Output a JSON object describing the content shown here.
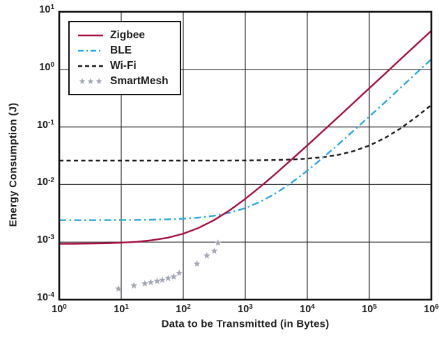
{
  "chart_data": {
    "type": "line",
    "title": "",
    "xlabel": "Data to be Transmitted (in Bytes)",
    "ylabel": "Energy Consumption (J)",
    "x_axis": {
      "label": "Data to be Transmitted (in Bytes)",
      "scale": "log",
      "min_exponent": 0,
      "max_exponent": 6,
      "tick_exponents": [
        0,
        1,
        2,
        3,
        4,
        5,
        6
      ],
      "tick_base": "10"
    },
    "y_axis": {
      "label": "Energy Consumption (J)",
      "scale": "log",
      "min_exponent": -4,
      "max_exponent": 1,
      "tick_exponents": [
        1,
        0,
        -1,
        -2,
        -3,
        -4
      ],
      "tick_base": "10"
    },
    "grid": true,
    "legend_position": "top-left",
    "series": [
      {
        "name": "Zigbee",
        "style": "solid",
        "color": "#a80e41",
        "x": [
          1,
          1.78,
          3.16,
          5.62,
          10,
          17.8,
          31.6,
          56.2,
          100,
          178,
          316,
          562,
          1000,
          1780,
          3160,
          5620,
          10000,
          17800,
          31600,
          56200,
          100000,
          178000,
          316000,
          562000,
          1000000
        ],
        "y": [
          0.000935,
          0.000938,
          0.000945,
          0.000956,
          0.000977,
          0.00101,
          0.00108,
          0.00119,
          0.0014,
          0.00177,
          0.00242,
          0.00357,
          0.00563,
          0.00929,
          0.0158,
          0.0274,
          0.0479,
          0.0846,
          0.149,
          0.265,
          0.471,
          0.838,
          1.49,
          2.64,
          4.7
        ]
      },
      {
        "name": "BLE",
        "style": "dashdot",
        "color": "#2aa9e0",
        "x": [
          1,
          1.78,
          3.16,
          5.62,
          10,
          17.8,
          31.6,
          56.2,
          100,
          178,
          316,
          562,
          1000,
          1780,
          3160,
          5620,
          10000,
          17800,
          31600,
          56200,
          100000,
          178000,
          316000,
          562000,
          1000000
        ],
        "y": [
          0.0024,
          0.0024,
          0.0024,
          0.00241,
          0.00242,
          0.00243,
          0.00245,
          0.00248,
          0.00255,
          0.00267,
          0.00287,
          0.00324,
          0.0039,
          0.00507,
          0.00714,
          0.0108,
          0.0174,
          0.0291,
          0.0498,
          0.0867,
          0.152,
          0.267,
          0.476,
          0.845,
          1.5
        ]
      },
      {
        "name": "Wi-Fi",
        "style": "dashed",
        "color": "#1b1b1b",
        "x": [
          1,
          1.78,
          3.16,
          5.62,
          10,
          17.8,
          31.6,
          56.2,
          100,
          178,
          316,
          562,
          1000,
          1780,
          3160,
          5620,
          10000,
          17800,
          31600,
          56200,
          100000,
          178000,
          316000,
          562000,
          1000000
        ],
        "y": [
          0.026,
          0.026,
          0.026,
          0.026,
          0.026,
          0.026,
          0.026,
          0.026,
          0.026,
          0.026,
          0.0261,
          0.0261,
          0.0262,
          0.0264,
          0.0267,
          0.0272,
          0.0282,
          0.0298,
          0.0328,
          0.0381,
          0.0475,
          0.0643,
          0.0939,
          0.147,
          0.241
        ]
      },
      {
        "name": "SmartMesh",
        "style": "stars",
        "color": "#a3a7b5",
        "x": [
          9,
          16,
          24,
          30,
          38,
          46,
          57,
          70,
          86,
          166,
          240,
          316,
          363
        ],
        "y": [
          0.000155,
          0.000175,
          0.00019,
          0.0002,
          0.00021,
          0.00022,
          0.000235,
          0.00025,
          0.00029,
          0.00042,
          0.00058,
          0.0007,
          0.00097
        ]
      }
    ],
    "colors": {
      "frame": "#111111",
      "grid": "#2d2d2d",
      "text": "#1c1c1c",
      "background": "#ffffff"
    }
  }
}
